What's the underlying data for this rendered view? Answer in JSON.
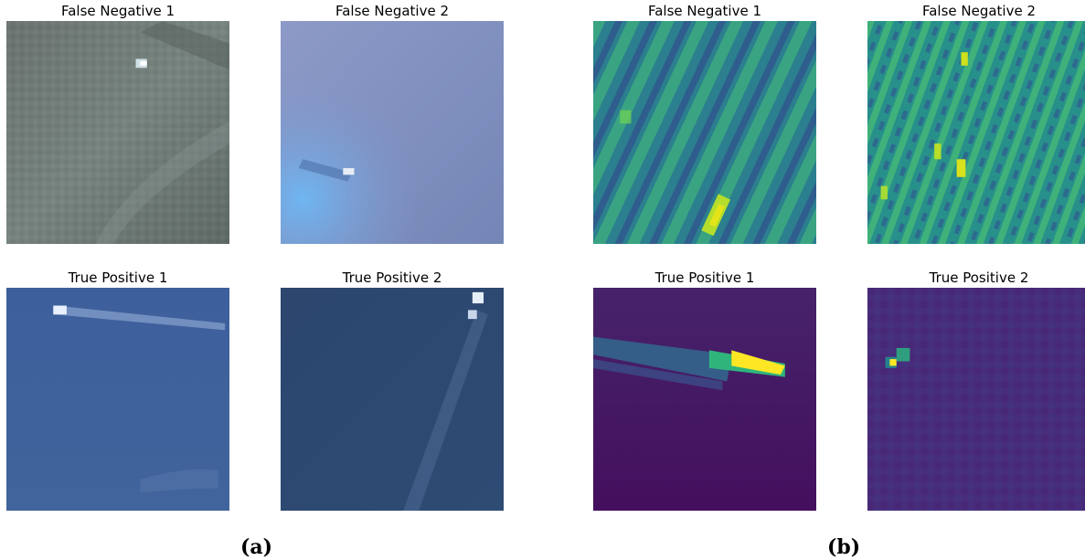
{
  "panels": {
    "a": {
      "label": "(a)",
      "tiles": [
        {
          "title": "False Negative 1",
          "kind": "rgb"
        },
        {
          "title": "False Negative 2",
          "kind": "rgb"
        },
        {
          "title": "True Positive 1",
          "kind": "rgb"
        },
        {
          "title": "True Positive 2",
          "kind": "rgb"
        }
      ]
    },
    "b": {
      "label": "(b)",
      "tiles": [
        {
          "title": "False Negative 1",
          "kind": "viridis"
        },
        {
          "title": "False Negative 2",
          "kind": "viridis"
        },
        {
          "title": "True Positive 1",
          "kind": "viridis"
        },
        {
          "title": "True Positive 2",
          "kind": "viridis"
        }
      ]
    }
  },
  "colors": {
    "fn1_rgb_base": "#6b7874",
    "fn2_rgb_base": "#7f92c2",
    "tp1_rgb_base": "#3f5f98",
    "tp2_rgb_base": "#2e4a72",
    "viridis_low": "#440154",
    "viridis_mid": "#21918c",
    "viridis_high": "#fde725"
  }
}
